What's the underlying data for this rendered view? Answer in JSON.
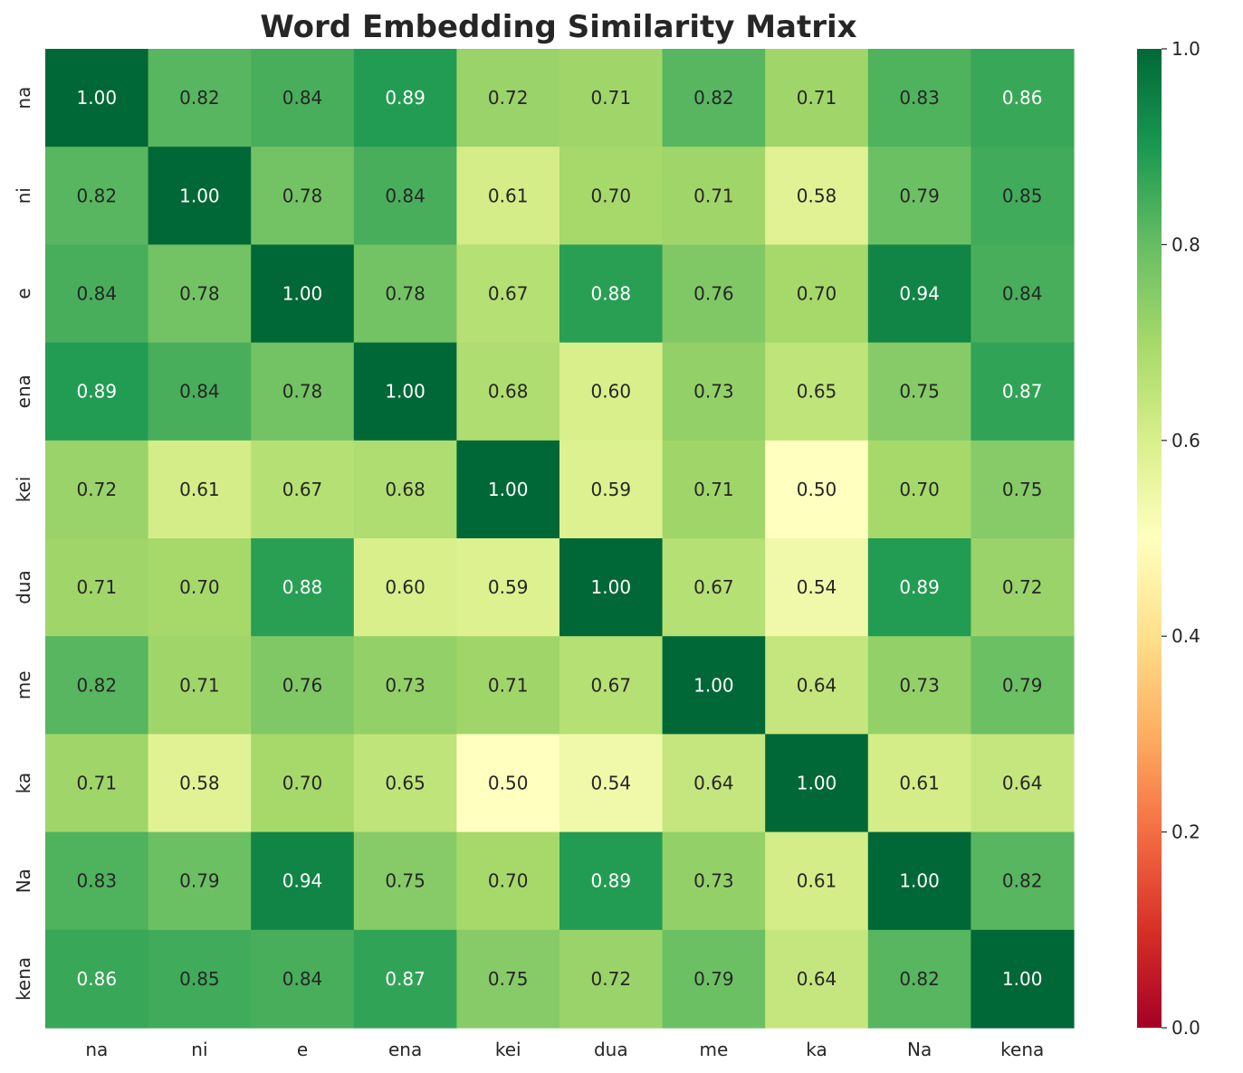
{
  "chart_data": {
    "type": "heatmap",
    "title": "Word Embedding Similarity Matrix",
    "xlabel": "",
    "ylabel": "",
    "row_labels": [
      "na",
      "ni",
      "e",
      "ena",
      "kei",
      "dua",
      "me",
      "ka",
      "Na",
      "kena"
    ],
    "col_labels": [
      "na",
      "ni",
      "e",
      "ena",
      "kei",
      "dua",
      "me",
      "ka",
      "Na",
      "kena"
    ],
    "values": [
      [
        1.0,
        0.82,
        0.84,
        0.89,
        0.72,
        0.71,
        0.82,
        0.71,
        0.83,
        0.86
      ],
      [
        0.82,
        1.0,
        0.78,
        0.84,
        0.61,
        0.7,
        0.71,
        0.58,
        0.79,
        0.85
      ],
      [
        0.84,
        0.78,
        1.0,
        0.78,
        0.67,
        0.88,
        0.76,
        0.7,
        0.94,
        0.84
      ],
      [
        0.89,
        0.84,
        0.78,
        1.0,
        0.68,
        0.6,
        0.73,
        0.65,
        0.75,
        0.87
      ],
      [
        0.72,
        0.61,
        0.67,
        0.68,
        1.0,
        0.59,
        0.71,
        0.5,
        0.7,
        0.75
      ],
      [
        0.71,
        0.7,
        0.88,
        0.6,
        0.59,
        1.0,
        0.67,
        0.54,
        0.89,
        0.72
      ],
      [
        0.82,
        0.71,
        0.76,
        0.73,
        0.71,
        0.67,
        1.0,
        0.64,
        0.73,
        0.79
      ],
      [
        0.71,
        0.58,
        0.7,
        0.65,
        0.5,
        0.54,
        0.64,
        1.0,
        0.61,
        0.64
      ],
      [
        0.83,
        0.79,
        0.94,
        0.75,
        0.7,
        0.89,
        0.73,
        0.61,
        1.0,
        0.82
      ],
      [
        0.86,
        0.85,
        0.84,
        0.87,
        0.75,
        0.72,
        0.79,
        0.64,
        0.82,
        1.0
      ]
    ],
    "value_format": "0.00",
    "colormap": "RdYlGn",
    "vmin": 0.0,
    "vmax": 1.0,
    "colorbar": {
      "ticks": [
        "0.0",
        "0.2",
        "0.4",
        "0.6",
        "0.8",
        "1.0"
      ],
      "tick_values": [
        0.0,
        0.2,
        0.4,
        0.6,
        0.8,
        1.0
      ],
      "placement": "right"
    },
    "grid": false,
    "annotations": true
  }
}
